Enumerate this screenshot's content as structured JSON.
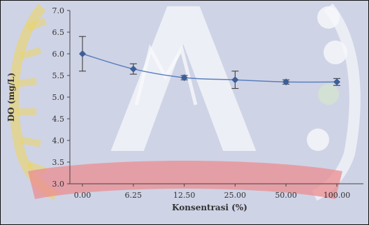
{
  "chart_data": {
    "type": "line",
    "categories": [
      "0.00",
      "6.25",
      "12.50",
      "25.00",
      "50.00",
      "100.00"
    ],
    "series": [
      {
        "values": [
          6.0,
          5.65,
          5.45,
          5.4,
          5.35,
          5.35
        ],
        "error": [
          0.4,
          0.12,
          0.05,
          0.2,
          0.05,
          0.08
        ]
      }
    ],
    "xlabel": "Konsentrasi (%)",
    "ylabel": "DO (mg/L)",
    "ylim": [
      3.0,
      7.0
    ],
    "yticks": [
      "3.0",
      "3.5",
      "4.0",
      "4.5",
      "5.0",
      "5.5",
      "6.0",
      "6.5",
      "7.0"
    ],
    "grid": false,
    "colors": {
      "line": "#5a7fbf",
      "marker": "#3d5f96",
      "error_bar": "#333333",
      "axis": "#444444",
      "tick_text": "#333333",
      "plot_background": "#cfd3e6",
      "watermark": "#ffffff",
      "watermark_ribbon": "#f08080",
      "watermark_wheat": "#f2d64b",
      "border": "#111111"
    }
  }
}
